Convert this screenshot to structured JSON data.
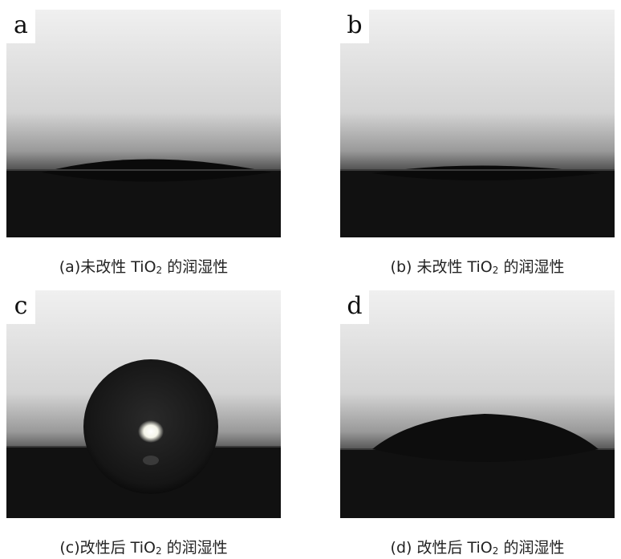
{
  "panels": [
    {
      "letter": "a",
      "caption_pre": "(a)未改性 TiO",
      "caption_sub": "2",
      "caption_post": " 的润湿性"
    },
    {
      "letter": "b",
      "caption_pre": "(b) 未改性 TiO",
      "caption_sub": "2",
      "caption_post": " 的润湿性"
    },
    {
      "letter": "c",
      "caption_pre": "(c)改性后 TiO",
      "caption_sub": "2",
      "caption_post": " 的润湿性"
    },
    {
      "letter": "d",
      "caption_pre": "(d) 改性后 TiO",
      "caption_sub": "2",
      "caption_post": " 的润湿性"
    }
  ]
}
